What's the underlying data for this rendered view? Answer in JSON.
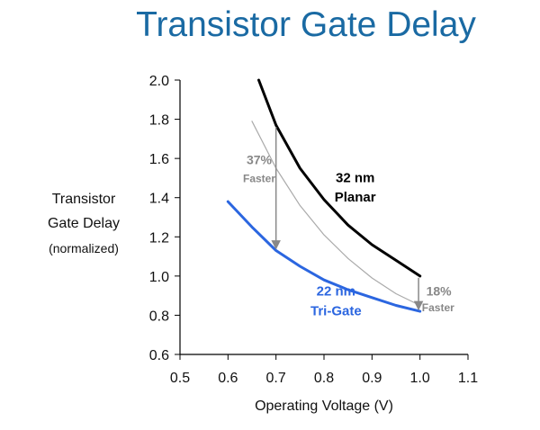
{
  "chart_data": {
    "type": "line",
    "title": "Transistor Gate Delay",
    "ylabel_lines": [
      "Transistor",
      "Gate Delay",
      "(normalized)"
    ],
    "xlabel": "Operating Voltage (V)",
    "xlim": [
      0.5,
      1.1
    ],
    "ylim": [
      0.6,
      2.0
    ],
    "xticks": [
      "0.5",
      "0.6",
      "0.7",
      "0.8",
      "0.9",
      "1.0",
      "1.1"
    ],
    "yticks": [
      "0.6",
      "0.8",
      "1.0",
      "1.2",
      "1.4",
      "1.6",
      "1.8",
      "2.0"
    ],
    "grid": false,
    "series": [
      {
        "name": "32 nm Planar",
        "label_lines": [
          "32 nm",
          "Planar"
        ],
        "color": "#000000",
        "x": [
          0.664,
          0.7,
          0.75,
          0.8,
          0.85,
          0.9,
          0.95,
          1.0
        ],
        "y": [
          2.0,
          1.77,
          1.55,
          1.39,
          1.26,
          1.16,
          1.08,
          1.0
        ]
      },
      {
        "name": "22 nm Tri-Gate",
        "label_lines": [
          "22 nm",
          "Tri-Gate"
        ],
        "color": "#2b66e0",
        "x": [
          0.6,
          0.65,
          0.7,
          0.75,
          0.8,
          0.85,
          0.9,
          0.95,
          1.0
        ],
        "y": [
          1.38,
          1.25,
          1.13,
          1.05,
          0.98,
          0.93,
          0.89,
          0.85,
          0.82
        ]
      },
      {
        "name": "",
        "color": "#aaaaaa",
        "x": [
          0.65,
          0.7,
          0.75,
          0.8,
          0.85,
          0.9,
          0.95,
          1.0
        ],
        "y": [
          1.79,
          1.55,
          1.36,
          1.21,
          1.09,
          0.99,
          0.91,
          0.85
        ]
      }
    ],
    "annotations": [
      {
        "label_lines": [
          "37%",
          "Faster"
        ],
        "color": "#888888",
        "arrow_x": 0.7,
        "arrow_from": 1.77,
        "arrow_to": 1.13
      },
      {
        "label_lines": [
          "18%",
          "Faster"
        ],
        "color": "#888888",
        "arrow_x": 0.997,
        "arrow_from": 1.0,
        "arrow_to": 0.82
      }
    ]
  }
}
